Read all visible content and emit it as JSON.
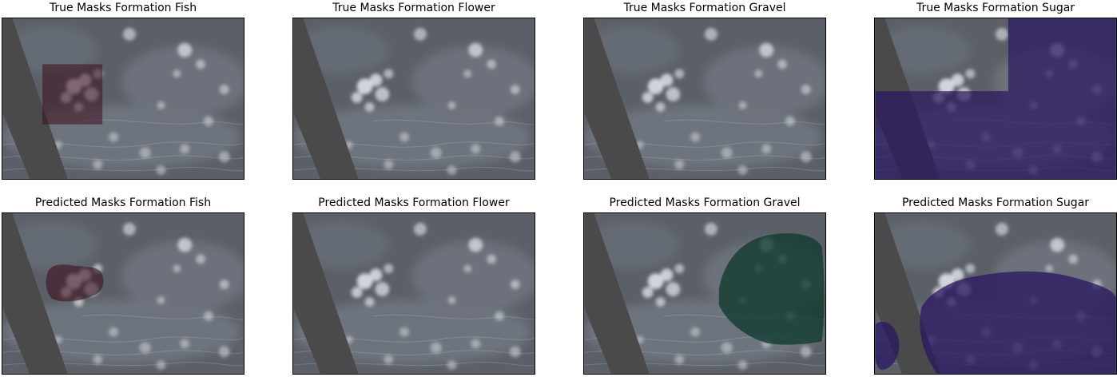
{
  "figure": {
    "rows": [
      {
        "panels": [
          {
            "title": "True Masks Formation Fish",
            "mask": {
              "class": "Fish",
              "shape": "rectangle",
              "color": "#3a0f1e"
            }
          },
          {
            "title": "True Masks Formation Flower",
            "mask": null
          },
          {
            "title": "True Masks Formation Gravel",
            "mask": null
          },
          {
            "title": "True Masks Formation Sugar",
            "mask": {
              "class": "Sugar",
              "shape": "step-region",
              "color": "#2a1660"
            }
          }
        ]
      },
      {
        "panels": [
          {
            "title": "Predicted Masks Formation Fish",
            "mask": {
              "class": "Fish",
              "shape": "blob",
              "color": "#3a0f1e"
            }
          },
          {
            "title": "Predicted Masks Formation Flower",
            "mask": null
          },
          {
            "title": "Predicted Masks Formation Gravel",
            "mask": {
              "class": "Gravel",
              "shape": "blob",
              "color": "#0f3a2e"
            }
          },
          {
            "title": "Predicted Masks Formation Sugar",
            "mask": {
              "class": "Sugar",
              "shape": "blob",
              "color": "#2a1660"
            }
          }
        ]
      }
    ]
  },
  "colors": {
    "background": "#5b6068",
    "swath_band": "#4a4a4a",
    "cloud": "#e6e9ee"
  }
}
